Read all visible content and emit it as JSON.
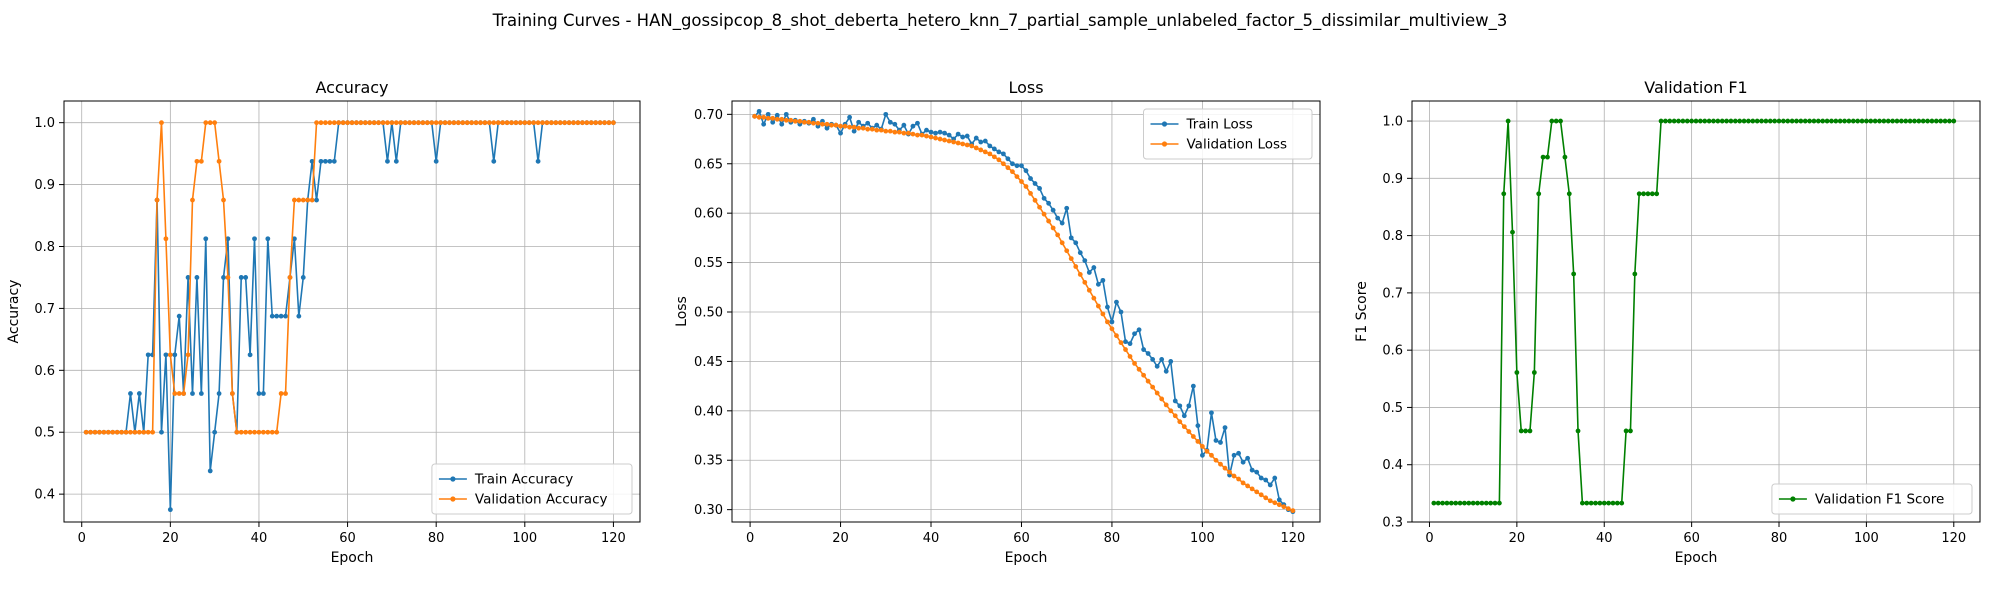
{
  "figure_title": "Training Curves - HAN_gossipcop_8_shot_deberta_hetero_knn_7_partial_sample_unlabeled_factor_5_dissimilar_multiview_3",
  "chart_data": [
    {
      "type": "line",
      "title": "Accuracy",
      "xlabel": "Epoch",
      "ylabel": "Accuracy",
      "xlim": [
        -4,
        126
      ],
      "ylim": [
        0.355,
        1.035
      ],
      "xticks": [
        0,
        20,
        40,
        60,
        80,
        100,
        120
      ],
      "yticks": [
        0.4,
        0.5,
        0.6,
        0.7,
        0.8,
        0.9,
        1.0
      ],
      "ytick_decimals": 1,
      "grid": true,
      "legend_position": "bottom-right",
      "x_start": 1,
      "series": [
        {
          "name": "Train Accuracy",
          "color": "#1f77b4",
          "values": [
            0.5,
            0.5,
            0.5,
            0.5,
            0.5,
            0.5,
            0.5,
            0.5,
            0.5,
            0.5,
            0.5625,
            0.5,
            0.5625,
            0.5,
            0.625,
            0.625,
            0.875,
            0.5,
            0.625,
            0.375,
            0.625,
            0.6875,
            0.5625,
            0.75,
            0.5625,
            0.75,
            0.5625,
            0.8125,
            0.4375,
            0.5,
            0.5625,
            0.75,
            0.8125,
            0.5625,
            0.5,
            0.75,
            0.75,
            0.625,
            0.8125,
            0.5625,
            0.5625,
            0.8125,
            0.6875,
            0.6875,
            0.6875,
            0.6875,
            0.75,
            0.8125,
            0.6875,
            0.75,
            0.875,
            0.9375,
            0.875,
            0.9375,
            0.9375,
            0.9375,
            0.9375,
            1.0,
            1.0,
            1.0,
            1.0,
            1.0,
            1.0,
            1.0,
            1.0,
            1.0,
            1.0,
            1.0,
            0.9375,
            1.0,
            0.9375,
            1.0,
            1.0,
            1.0,
            1.0,
            1.0,
            1.0,
            1.0,
            1.0,
            0.9375,
            1.0,
            1.0,
            1.0,
            1.0,
            1.0,
            1.0,
            1.0,
            1.0,
            1.0,
            1.0,
            1.0,
            1.0,
            0.9375,
            1.0,
            1.0,
            1.0,
            1.0,
            1.0,
            1.0,
            1.0,
            1.0,
            1.0,
            0.9375,
            1.0,
            1.0,
            1.0,
            1.0,
            1.0,
            1.0,
            1.0,
            1.0,
            1.0,
            1.0,
            1.0,
            1.0,
            1.0,
            1.0,
            1.0,
            1.0,
            1.0
          ]
        },
        {
          "name": "Validation Accuracy",
          "color": "#ff7f0e",
          "values": [
            0.5,
            0.5,
            0.5,
            0.5,
            0.5,
            0.5,
            0.5,
            0.5,
            0.5,
            0.5,
            0.5,
            0.5,
            0.5,
            0.5,
            0.5,
            0.5,
            0.875,
            1.0,
            0.8125,
            0.625,
            0.5625,
            0.5625,
            0.5625,
            0.625,
            0.875,
            0.9375,
            0.9375,
            1.0,
            1.0,
            1.0,
            0.9375,
            0.875,
            0.75,
            0.5625,
            0.5,
            0.5,
            0.5,
            0.5,
            0.5,
            0.5,
            0.5,
            0.5,
            0.5,
            0.5,
            0.5625,
            0.5625,
            0.75,
            0.875,
            0.875,
            0.875,
            0.875,
            0.875,
            1.0,
            1.0,
            1.0,
            1.0,
            1.0,
            1.0,
            1.0,
            1.0,
            1.0,
            1.0,
            1.0,
            1.0,
            1.0,
            1.0,
            1.0,
            1.0,
            1.0,
            1.0,
            1.0,
            1.0,
            1.0,
            1.0,
            1.0,
            1.0,
            1.0,
            1.0,
            1.0,
            1.0,
            1.0,
            1.0,
            1.0,
            1.0,
            1.0,
            1.0,
            1.0,
            1.0,
            1.0,
            1.0,
            1.0,
            1.0,
            1.0,
            1.0,
            1.0,
            1.0,
            1.0,
            1.0,
            1.0,
            1.0,
            1.0,
            1.0,
            1.0,
            1.0,
            1.0,
            1.0,
            1.0,
            1.0,
            1.0,
            1.0,
            1.0,
            1.0,
            1.0,
            1.0,
            1.0,
            1.0,
            1.0,
            1.0,
            1.0,
            1.0
          ]
        }
      ]
    },
    {
      "type": "line",
      "title": "Loss",
      "xlabel": "Epoch",
      "ylabel": "Loss",
      "xlim": [
        -4,
        126
      ],
      "ylim": [
        0.2875,
        0.7135
      ],
      "xticks": [
        0,
        20,
        40,
        60,
        80,
        100,
        120
      ],
      "yticks": [
        0.3,
        0.35,
        0.4,
        0.45,
        0.5,
        0.55,
        0.6,
        0.65,
        0.7
      ],
      "ytick_decimals": 2,
      "grid": true,
      "legend_position": "top-right",
      "x_start": 1,
      "series": [
        {
          "name": "Train Loss",
          "color": "#1f77b4",
          "values": [
            0.698,
            0.703,
            0.69,
            0.7,
            0.692,
            0.699,
            0.69,
            0.7,
            0.692,
            0.694,
            0.69,
            0.693,
            0.691,
            0.695,
            0.688,
            0.693,
            0.686,
            0.69,
            0.689,
            0.681,
            0.69,
            0.697,
            0.683,
            0.692,
            0.688,
            0.691,
            0.686,
            0.689,
            0.685,
            0.7,
            0.692,
            0.69,
            0.684,
            0.689,
            0.68,
            0.688,
            0.691,
            0.68,
            0.684,
            0.682,
            0.681,
            0.682,
            0.681,
            0.679,
            0.675,
            0.68,
            0.677,
            0.678,
            0.67,
            0.676,
            0.672,
            0.673,
            0.668,
            0.665,
            0.662,
            0.66,
            0.655,
            0.65,
            0.648,
            0.648,
            0.643,
            0.635,
            0.63,
            0.625,
            0.615,
            0.61,
            0.603,
            0.595,
            0.59,
            0.605,
            0.575,
            0.57,
            0.56,
            0.552,
            0.54,
            0.545,
            0.528,
            0.532,
            0.505,
            0.49,
            0.51,
            0.5,
            0.47,
            0.468,
            0.478,
            0.482,
            0.462,
            0.458,
            0.452,
            0.445,
            0.452,
            0.44,
            0.45,
            0.41,
            0.405,
            0.395,
            0.405,
            0.425,
            0.385,
            0.355,
            0.36,
            0.398,
            0.37,
            0.368,
            0.383,
            0.335,
            0.355,
            0.357,
            0.348,
            0.352,
            0.34,
            0.338,
            0.332,
            0.33,
            0.325,
            0.332,
            0.31,
            0.305,
            0.3,
            0.298
          ]
        },
        {
          "name": "Validation Loss",
          "color": "#ff7f0e",
          "values": [
            0.698,
            0.697,
            0.697,
            0.696,
            0.696,
            0.695,
            0.695,
            0.694,
            0.694,
            0.693,
            0.693,
            0.692,
            0.692,
            0.691,
            0.691,
            0.69,
            0.69,
            0.689,
            0.689,
            0.688,
            0.688,
            0.687,
            0.687,
            0.686,
            0.686,
            0.685,
            0.685,
            0.684,
            0.684,
            0.683,
            0.683,
            0.682,
            0.682,
            0.681,
            0.681,
            0.68,
            0.679,
            0.679,
            0.678,
            0.677,
            0.676,
            0.675,
            0.674,
            0.673,
            0.672,
            0.671,
            0.67,
            0.669,
            0.668,
            0.666,
            0.664,
            0.662,
            0.66,
            0.657,
            0.654,
            0.65,
            0.646,
            0.642,
            0.637,
            0.632,
            0.627,
            0.62,
            0.613,
            0.606,
            0.599,
            0.592,
            0.585,
            0.578,
            0.57,
            0.562,
            0.554,
            0.546,
            0.538,
            0.53,
            0.522,
            0.514,
            0.506,
            0.498,
            0.49,
            0.483,
            0.476,
            0.469,
            0.462,
            0.455,
            0.448,
            0.442,
            0.436,
            0.43,
            0.424,
            0.418,
            0.412,
            0.406,
            0.4,
            0.395,
            0.389,
            0.384,
            0.379,
            0.374,
            0.369,
            0.364,
            0.359,
            0.355,
            0.35,
            0.346,
            0.342,
            0.338,
            0.334,
            0.331,
            0.327,
            0.324,
            0.321,
            0.318,
            0.315,
            0.312,
            0.309,
            0.307,
            0.305,
            0.303,
            0.301,
            0.299
          ]
        }
      ]
    },
    {
      "type": "line",
      "title": "Validation F1",
      "xlabel": "Epoch",
      "ylabel": "F1 Score",
      "xlim": [
        -4,
        126
      ],
      "ylim": [
        0.3,
        1.035
      ],
      "xticks": [
        0,
        20,
        40,
        60,
        80,
        100,
        120
      ],
      "yticks": [
        0.3,
        0.4,
        0.5,
        0.6,
        0.7,
        0.8,
        0.9,
        1.0
      ],
      "ytick_decimals": 1,
      "grid": true,
      "legend_position": "bottom-right",
      "x_start": 1,
      "series": [
        {
          "name": "Validation F1 Score",
          "color": "#008000",
          "values": [
            0.333,
            0.333,
            0.333,
            0.333,
            0.333,
            0.333,
            0.333,
            0.333,
            0.333,
            0.333,
            0.333,
            0.333,
            0.333,
            0.333,
            0.333,
            0.333,
            0.873,
            1.0,
            0.806,
            0.561,
            0.459,
            0.459,
            0.459,
            0.561,
            0.873,
            0.937,
            0.937,
            1.0,
            1.0,
            1.0,
            0.937,
            0.873,
            0.733,
            0.459,
            0.333,
            0.333,
            0.333,
            0.333,
            0.333,
            0.333,
            0.333,
            0.333,
            0.333,
            0.333,
            0.459,
            0.459,
            0.733,
            0.873,
            0.873,
            0.873,
            0.873,
            0.873,
            1.0,
            1.0,
            1.0,
            1.0,
            1.0,
            1.0,
            1.0,
            1.0,
            1.0,
            1.0,
            1.0,
            1.0,
            1.0,
            1.0,
            1.0,
            1.0,
            1.0,
            1.0,
            1.0,
            1.0,
            1.0,
            1.0,
            1.0,
            1.0,
            1.0,
            1.0,
            1.0,
            1.0,
            1.0,
            1.0,
            1.0,
            1.0,
            1.0,
            1.0,
            1.0,
            1.0,
            1.0,
            1.0,
            1.0,
            1.0,
            1.0,
            1.0,
            1.0,
            1.0,
            1.0,
            1.0,
            1.0,
            1.0,
            1.0,
            1.0,
            1.0,
            1.0,
            1.0,
            1.0,
            1.0,
            1.0,
            1.0,
            1.0,
            1.0,
            1.0,
            1.0,
            1.0,
            1.0,
            1.0,
            1.0,
            1.0,
            1.0,
            1.0
          ]
        }
      ]
    }
  ]
}
